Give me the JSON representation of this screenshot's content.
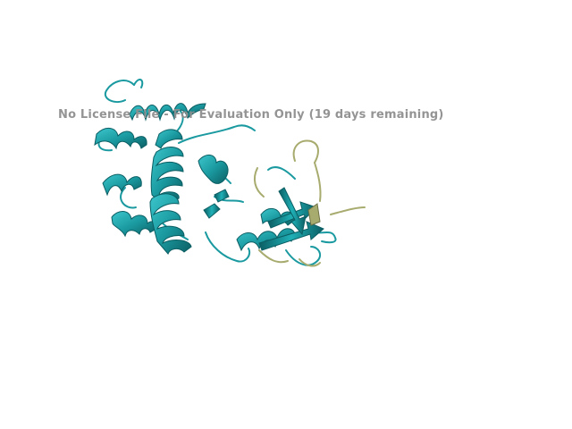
{
  "viewer": {
    "watermark": "No License File - For Evaluation Only (19 days remaining)",
    "background_color": "#ffffff",
    "watermark_color": "#8f8f8f"
  },
  "structure": {
    "render_style": "cartoon",
    "chain_colors": {
      "primary": "#1a9aa0",
      "primary_dark": "#0b5e63",
      "primary_light": "#3cc6cc",
      "secondary": "#a8ab6e",
      "secondary_dark": "#6f7246"
    }
  }
}
